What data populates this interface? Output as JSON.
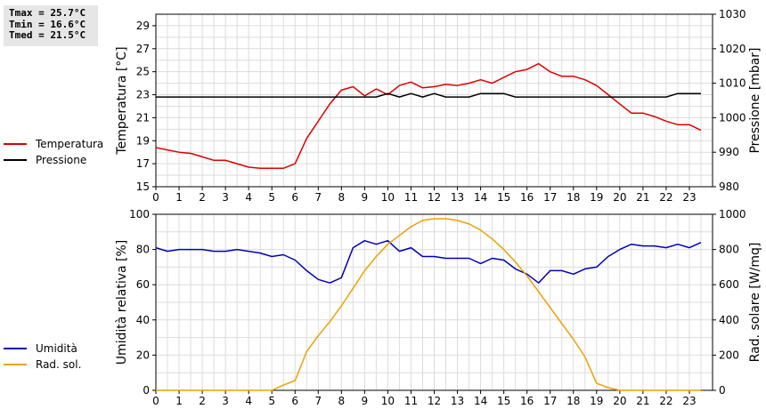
{
  "stats": {
    "tmax": "Tmax = 25.7°C",
    "tmin": "Tmin = 16.6°C",
    "tmed": "Tmed = 21.5°C"
  },
  "chart_data": [
    {
      "type": "line",
      "xlim": [
        0,
        24
      ],
      "x_ticks": [
        0,
        1,
        2,
        3,
        4,
        5,
        6,
        7,
        8,
        9,
        10,
        11,
        12,
        13,
        14,
        15,
        16,
        17,
        18,
        19,
        20,
        21,
        22,
        23
      ],
      "ylabel": "Temperatura [°C]",
      "ylim": [
        15,
        30
      ],
      "y_ticks": [
        15,
        17,
        19,
        21,
        23,
        25,
        27,
        29
      ],
      "y2label": "Pressione [mbar]",
      "y2lim": [
        980,
        1030
      ],
      "y2_ticks": [
        980,
        990,
        1000,
        1010,
        1020,
        1030
      ],
      "grid": true,
      "legend_position": "left",
      "series": [
        {
          "name": "Temperatura",
          "axis": "left",
          "color": "#dd0000",
          "x": [
            0,
            0.5,
            1,
            1.5,
            2,
            2.5,
            3,
            3.5,
            4,
            4.5,
            5,
            5.5,
            6,
            6.5,
            7,
            7.5,
            8,
            8.5,
            9,
            9.5,
            10,
            10.5,
            11,
            11.5,
            12,
            12.5,
            13,
            13.5,
            14,
            14.5,
            15,
            15.5,
            16,
            16.5,
            17,
            17.5,
            18,
            18.5,
            19,
            19.5,
            20,
            20.5,
            21,
            21.5,
            22,
            22.5,
            23,
            23.5
          ],
          "values": [
            18.4,
            18.2,
            18.0,
            17.9,
            17.6,
            17.3,
            17.3,
            17.0,
            16.7,
            16.6,
            16.6,
            16.6,
            17.0,
            19.2,
            20.7,
            22.2,
            23.4,
            23.7,
            22.9,
            23.5,
            23.0,
            23.8,
            24.1,
            23.6,
            23.7,
            23.9,
            23.8,
            24.0,
            24.3,
            24.0,
            24.5,
            25.0,
            25.2,
            25.7,
            25.0,
            24.6,
            24.6,
            24.3,
            23.8,
            23.0,
            22.2,
            21.4,
            21.4,
            21.1,
            20.7,
            20.4,
            20.4,
            19.9
          ]
        },
        {
          "name": "Pressione",
          "axis": "right",
          "color": "#000000",
          "x": [
            0,
            0.5,
            1,
            1.5,
            2,
            2.5,
            3,
            3.5,
            4,
            4.5,
            5,
            5.5,
            6,
            6.5,
            7,
            7.5,
            8,
            8.5,
            9,
            9.5,
            10,
            10.5,
            11,
            11.5,
            12,
            12.5,
            13,
            13.5,
            14,
            14.5,
            15,
            15.5,
            16,
            16.5,
            17,
            17.5,
            18,
            18.5,
            19,
            19.5,
            20,
            20.5,
            21,
            21.5,
            22,
            22.5,
            23,
            23.5
          ],
          "values": [
            1006,
            1006,
            1006,
            1006,
            1006,
            1006,
            1006,
            1006,
            1006,
            1006,
            1006,
            1006,
            1006,
            1006,
            1006,
            1006,
            1006,
            1006,
            1006,
            1006,
            1007,
            1006,
            1007,
            1006,
            1007,
            1006,
            1006,
            1006,
            1007,
            1007,
            1007,
            1006,
            1006,
            1006,
            1006,
            1006,
            1006,
            1006,
            1006,
            1006,
            1006,
            1006,
            1006,
            1006,
            1006,
            1007,
            1007,
            1007
          ]
        }
      ]
    },
    {
      "type": "line",
      "xlim": [
        0,
        24
      ],
      "x_ticks": [
        0,
        1,
        2,
        3,
        4,
        5,
        6,
        7,
        8,
        9,
        10,
        11,
        12,
        13,
        14,
        15,
        16,
        17,
        18,
        19,
        20,
        21,
        22,
        23
      ],
      "ylabel": "Umidità relativa [%]",
      "ylim": [
        0,
        100
      ],
      "y_ticks": [
        0,
        20,
        40,
        60,
        80,
        100
      ],
      "y2label": "Rad. solare [W/mq]",
      "y2lim": [
        0,
        1000
      ],
      "y2_ticks": [
        0,
        200,
        400,
        600,
        800,
        1000
      ],
      "grid": true,
      "legend_position": "left",
      "series": [
        {
          "name": "Umidità",
          "axis": "left",
          "color": "#0000bb",
          "x": [
            0,
            0.5,
            1,
            1.5,
            2,
            2.5,
            3,
            3.5,
            4,
            4.5,
            5,
            5.5,
            6,
            6.5,
            7,
            7.5,
            8,
            8.5,
            9,
            9.5,
            10,
            10.5,
            11,
            11.5,
            12,
            12.5,
            13,
            13.5,
            14,
            14.5,
            15,
            15.5,
            16,
            16.5,
            17,
            17.5,
            18,
            18.5,
            19,
            19.5,
            20,
            20.5,
            21,
            21.5,
            22,
            22.5,
            23,
            23.5
          ],
          "values": [
            81,
            79,
            80,
            80,
            80,
            79,
            79,
            80,
            79,
            78,
            76,
            77,
            74,
            68,
            63,
            61,
            64,
            81,
            85,
            83,
            85,
            79,
            81,
            76,
            76,
            75,
            75,
            75,
            72,
            75,
            74,
            69,
            66,
            61,
            68,
            68,
            66,
            69,
            70,
            76,
            80,
            83,
            82,
            82,
            81,
            83,
            81,
            84
          ]
        },
        {
          "name": "Rad. sol.",
          "axis": "right",
          "color": "#eea000",
          "x": [
            0,
            1,
            2,
            3,
            4,
            5,
            5.5,
            6,
            6.5,
            7,
            7.5,
            8,
            8.5,
            9,
            9.5,
            10,
            10.5,
            11,
            11.5,
            12,
            12.5,
            13,
            13.5,
            14,
            14.5,
            15,
            15.5,
            16,
            16.5,
            17,
            17.5,
            18,
            18.5,
            19,
            19.5,
            20,
            21,
            22,
            23,
            23.5
          ],
          "values": [
            0,
            0,
            0,
            0,
            0,
            0,
            30,
            55,
            220,
            310,
            390,
            480,
            580,
            680,
            760,
            830,
            880,
            930,
            965,
            975,
            975,
            965,
            945,
            910,
            860,
            800,
            730,
            650,
            560,
            470,
            380,
            290,
            190,
            40,
            15,
            0,
            0,
            0,
            0,
            0
          ]
        }
      ]
    }
  ]
}
